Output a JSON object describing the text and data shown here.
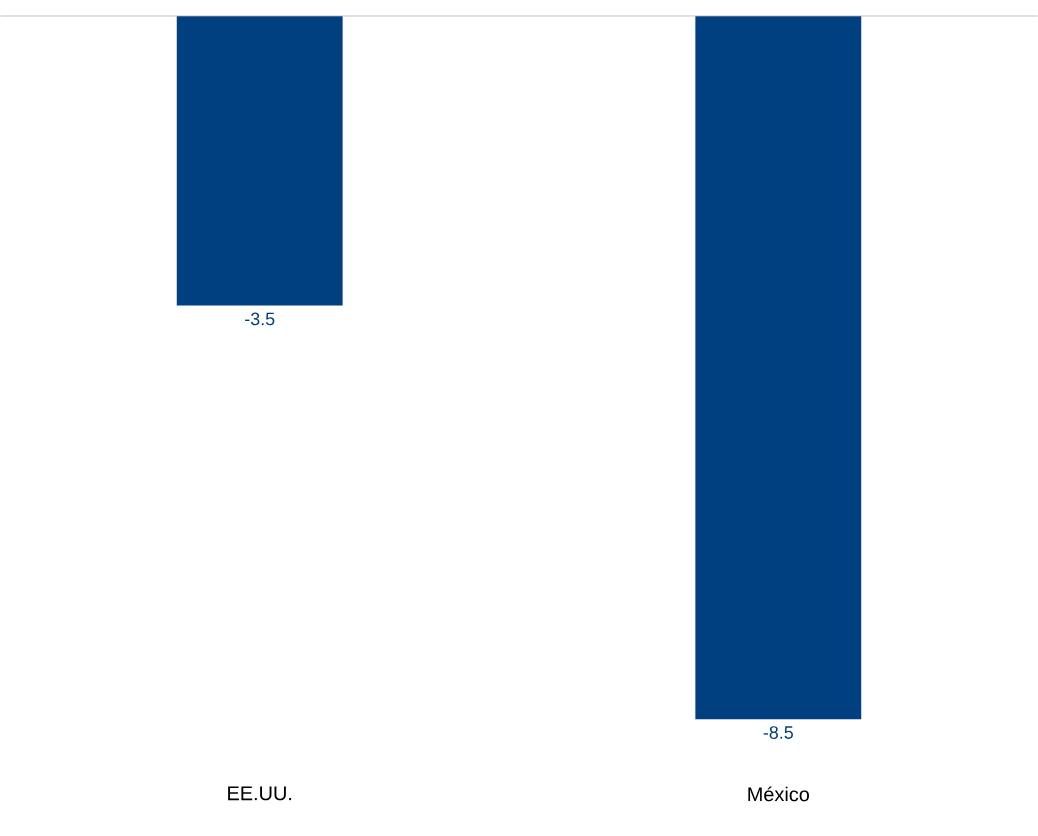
{
  "chart_data": {
    "type": "bar",
    "categories": [
      "EE.UU.",
      "México"
    ],
    "values": [
      -3.5,
      -8.5
    ],
    "color": "#003f80",
    "data_labels": true
  }
}
